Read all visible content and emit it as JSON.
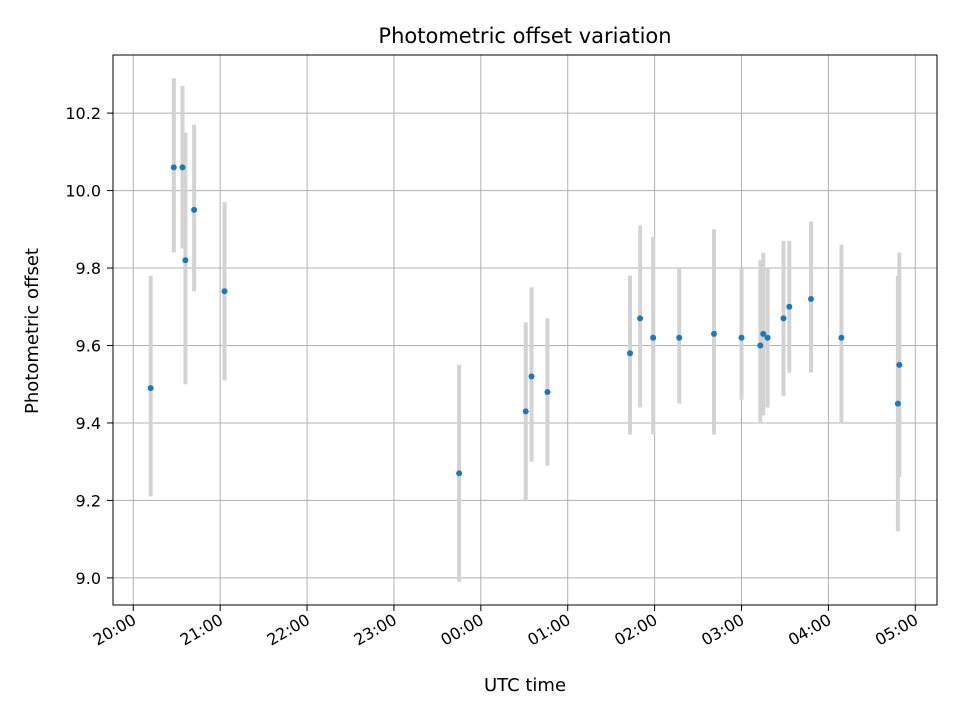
{
  "chart_data": {
    "type": "scatter",
    "title": "Photometric offset variation",
    "xlabel": "UTC time",
    "ylabel": "Photometric offset",
    "x_ticks": [
      "20:00",
      "21:00",
      "22:00",
      "23:00",
      "00:00",
      "01:00",
      "02:00",
      "03:00",
      "04:00",
      "05:00"
    ],
    "y_ticks": [
      "9.0",
      "9.2",
      "9.4",
      "9.6",
      "9.8",
      "10.0",
      "10.2"
    ],
    "xlim": [
      "19:46",
      "05:15"
    ],
    "ylim": [
      8.93,
      10.35
    ],
    "grid": true,
    "colors": {
      "marker": "#1f77b4",
      "errorbar": "#d3d3d3",
      "grid": "#b0b0b0"
    },
    "points": [
      {
        "x": "20:12",
        "y": 9.49,
        "lo": 9.21,
        "hi": 9.78
      },
      {
        "x": "20:28",
        "y": 10.06,
        "lo": 9.84,
        "hi": 10.29
      },
      {
        "x": "20:34",
        "y": 10.06,
        "lo": 9.85,
        "hi": 10.27
      },
      {
        "x": "20:36",
        "y": 9.82,
        "lo": 9.5,
        "hi": 10.15
      },
      {
        "x": "20:42",
        "y": 9.95,
        "lo": 9.74,
        "hi": 10.17
      },
      {
        "x": "21:03",
        "y": 9.74,
        "lo": 9.51,
        "hi": 9.97
      },
      {
        "x": "23:45",
        "y": 9.27,
        "lo": 8.99,
        "hi": 9.55
      },
      {
        "x": "00:31",
        "y": 9.43,
        "lo": 9.2,
        "hi": 9.66
      },
      {
        "x": "00:35",
        "y": 9.52,
        "lo": 9.3,
        "hi": 9.75
      },
      {
        "x": "00:46",
        "y": 9.48,
        "lo": 9.29,
        "hi": 9.67
      },
      {
        "x": "01:43",
        "y": 9.58,
        "lo": 9.37,
        "hi": 9.78
      },
      {
        "x": "01:50",
        "y": 9.67,
        "lo": 9.44,
        "hi": 9.91
      },
      {
        "x": "01:59",
        "y": 9.62,
        "lo": 9.37,
        "hi": 9.88
      },
      {
        "x": "02:17",
        "y": 9.62,
        "lo": 9.45,
        "hi": 9.8
      },
      {
        "x": "02:41",
        "y": 9.63,
        "lo": 9.37,
        "hi": 9.9
      },
      {
        "x": "03:00",
        "y": 9.62,
        "lo": 9.46,
        "hi": 9.8
      },
      {
        "x": "03:13",
        "y": 9.6,
        "lo": 9.4,
        "hi": 9.82
      },
      {
        "x": "03:15",
        "y": 9.63,
        "lo": 9.42,
        "hi": 9.84
      },
      {
        "x": "03:18",
        "y": 9.62,
        "lo": 9.44,
        "hi": 9.8
      },
      {
        "x": "03:29",
        "y": 9.67,
        "lo": 9.47,
        "hi": 9.87
      },
      {
        "x": "03:33",
        "y": 9.7,
        "lo": 9.53,
        "hi": 9.87
      },
      {
        "x": "03:48",
        "y": 9.72,
        "lo": 9.53,
        "hi": 9.92
      },
      {
        "x": "04:09",
        "y": 9.62,
        "lo": 9.4,
        "hi": 9.86
      },
      {
        "x": "04:48",
        "y": 9.45,
        "lo": 9.12,
        "hi": 9.78
      },
      {
        "x": "04:49",
        "y": 9.55,
        "lo": 9.26,
        "hi": 9.84
      }
    ]
  }
}
